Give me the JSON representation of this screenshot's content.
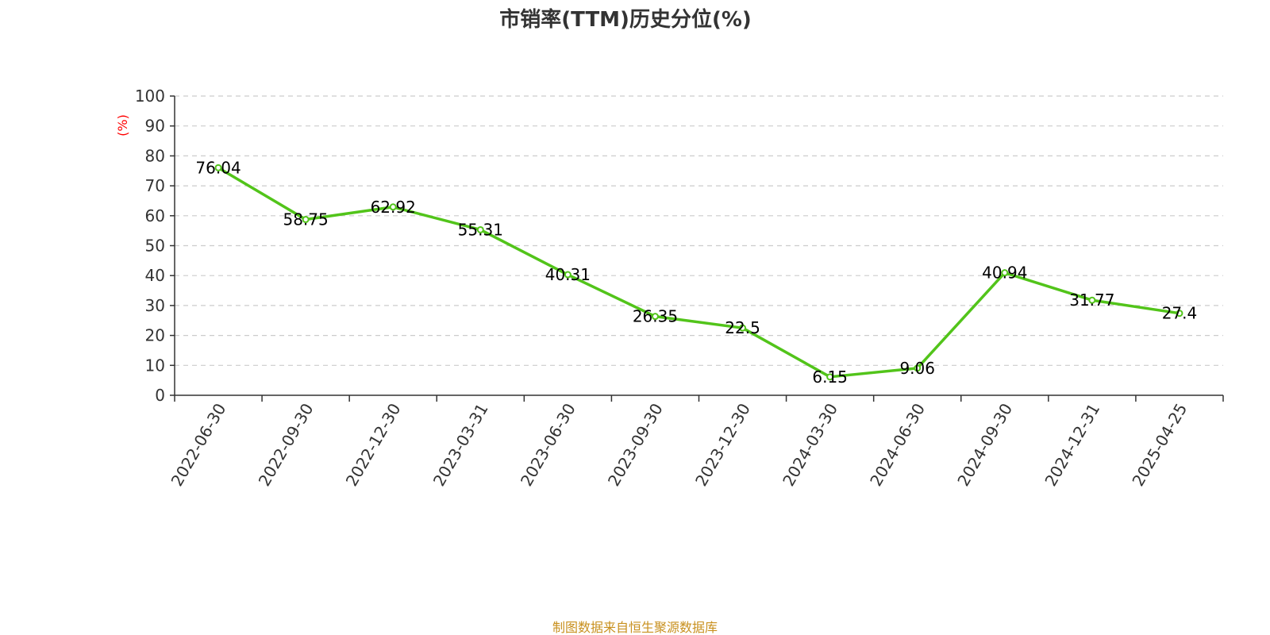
{
  "chart_data": {
    "type": "line",
    "title": "市销率(TTM)历史分位(%)",
    "unit_label": "(%)",
    "categories": [
      "2022-06-30",
      "2022-09-30",
      "2022-12-30",
      "2023-03-31",
      "2023-06-30",
      "2023-09-30",
      "2023-12-30",
      "2024-03-30",
      "2024-06-30",
      "2024-09-30",
      "2024-12-31",
      "2025-04-25"
    ],
    "series": [
      {
        "values": [
          76.04,
          58.75,
          62.92,
          55.31,
          40.31,
          26.35,
          22.5,
          6.15,
          9.06,
          40.94,
          31.77,
          27.4
        ],
        "labels": [
          "76.04",
          "58.75",
          "62.92",
          "55.31",
          "40.31",
          "26.35",
          "22.5",
          "6.15",
          "9.06",
          "40.94",
          "31.77",
          "27.4"
        ],
        "color": "#52c41a"
      }
    ],
    "ylim": [
      0,
      100
    ],
    "yticks": [
      0,
      10,
      20,
      30,
      40,
      50,
      60,
      70,
      80,
      90,
      100
    ],
    "grid": true,
    "legend": "none"
  },
  "footer": {
    "source": "制图数据来自恒生聚源数据库"
  },
  "colors": {
    "line": "#52c41a",
    "axis": "#333333",
    "grid": "#cccccc",
    "unit": "#ff0000",
    "source": "#c8901e"
  }
}
